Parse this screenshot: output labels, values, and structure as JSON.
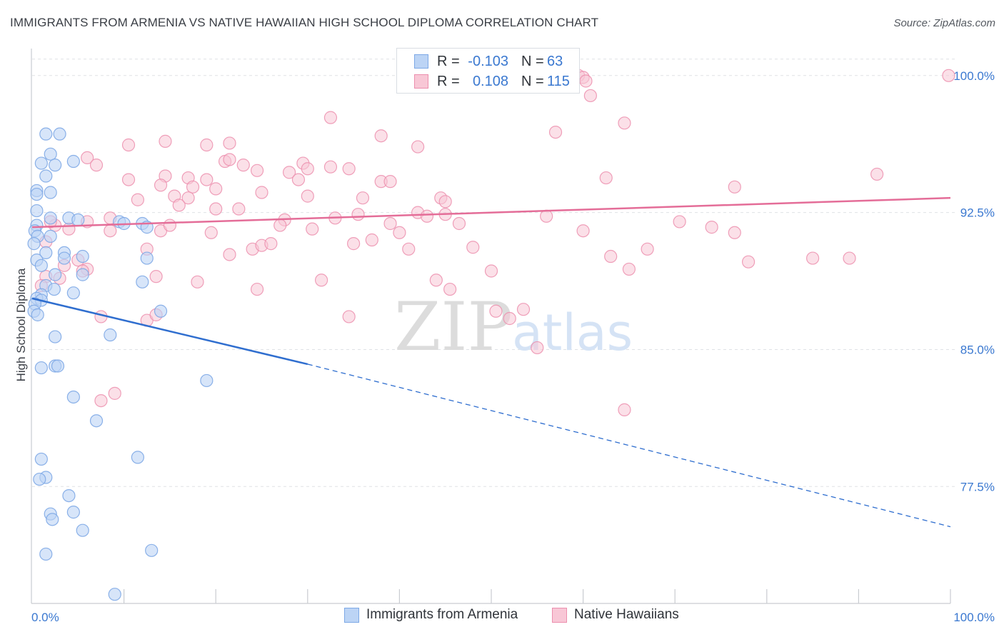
{
  "title": "IMMIGRANTS FROM ARMENIA VS NATIVE HAWAIIAN HIGH SCHOOL DIPLOMA CORRELATION CHART",
  "source": "Source: ZipAtlas.com",
  "watermark": {
    "zip": "ZIP",
    "atlas": "atlas"
  },
  "colors": {
    "blue": "#7ea9e6",
    "blue_fill": "#bcd4f5",
    "blue_line": "#2f6ecf",
    "pink": "#ec8fae",
    "pink_fill": "#f8c7d6",
    "pink_line": "#e46d98",
    "axis_label": "#3a78d0",
    "grid": "#dfe2e6"
  },
  "legend_top": {
    "rows": [
      {
        "series": "Immigrants from Armenia",
        "r_label": "R =",
        "r_value": "-0.103",
        "n_label": "N =",
        "n_value": "63"
      },
      {
        "series": "Native Hawaiians",
        "r_label": "R =",
        "r_value": "0.108",
        "n_label": "N =",
        "n_value": "115"
      }
    ]
  },
  "legend_bottom": [
    "Immigrants from Armenia",
    "Native Hawaiians"
  ],
  "chart_data": {
    "type": "scatter",
    "title": "IMMIGRANTS FROM ARMENIA VS NATIVE HAWAIIAN HIGH SCHOOL DIPLOMA CORRELATION CHART",
    "xlabel": "",
    "ylabel": "High School Diploma",
    "xlim": [
      0,
      100
    ],
    "ylim": [
      71.1,
      101.4
    ],
    "x_tick_labels": [
      {
        "value": 0,
        "label": "0.0%"
      },
      {
        "value": 100,
        "label": "100.0%"
      }
    ],
    "x_minor_ticks": [
      10,
      20,
      30,
      40,
      50,
      60,
      70,
      80,
      90
    ],
    "y_ticks": [
      {
        "value": 77.5,
        "label": "77.5%"
      },
      {
        "value": 85.0,
        "label": "85.0%"
      },
      {
        "value": 92.5,
        "label": "92.5%"
      },
      {
        "value": 100.0,
        "label": "100.0%"
      }
    ],
    "grid": "horizontal dashed",
    "series": [
      {
        "name": "Immigrants from Armenia",
        "r": -0.103,
        "n": 63,
        "trend": {
          "x0": 0,
          "y0": 87.8,
          "x1": 30,
          "y1": 84.2,
          "dashed_to": 100,
          "y_end": 75.3
        },
        "points": [
          [
            1.5,
            96.8
          ],
          [
            3.0,
            96.8
          ],
          [
            2.0,
            95.7
          ],
          [
            1.0,
            95.2
          ],
          [
            2.5,
            95.1
          ],
          [
            4.5,
            95.3
          ],
          [
            1.5,
            94.5
          ],
          [
            0.5,
            93.7
          ],
          [
            0.5,
            93.5
          ],
          [
            2.0,
            93.6
          ],
          [
            0.5,
            92.6
          ],
          [
            2.0,
            92.2
          ],
          [
            4.0,
            92.2
          ],
          [
            5.0,
            92.1
          ],
          [
            9.5,
            92.0
          ],
          [
            12.0,
            91.9
          ],
          [
            12.5,
            91.7
          ],
          [
            0.5,
            91.8
          ],
          [
            0.3,
            91.5
          ],
          [
            0.6,
            91.2
          ],
          [
            2.0,
            91.2
          ],
          [
            0.2,
            90.8
          ],
          [
            1.5,
            90.3
          ],
          [
            3.5,
            90.3
          ],
          [
            3.5,
            90.0
          ],
          [
            5.5,
            90.1
          ],
          [
            12.5,
            90.0
          ],
          [
            0.5,
            89.9
          ],
          [
            1.0,
            89.6
          ],
          [
            2.5,
            89.1
          ],
          [
            5.5,
            89.1
          ],
          [
            12.0,
            88.7
          ],
          [
            1.5,
            88.5
          ],
          [
            1.0,
            88.0
          ],
          [
            0.5,
            87.8
          ],
          [
            1.0,
            87.7
          ],
          [
            4.5,
            88.1
          ],
          [
            14.0,
            87.1
          ],
          [
            0.3,
            87.5
          ],
          [
            0.2,
            87.1
          ],
          [
            2.5,
            85.7
          ],
          [
            8.5,
            85.8
          ],
          [
            1.0,
            84.0
          ],
          [
            2.5,
            84.1
          ],
          [
            2.8,
            84.1
          ],
          [
            19.0,
            83.3
          ],
          [
            4.5,
            82.4
          ],
          [
            7.0,
            81.1
          ],
          [
            1.0,
            79.0
          ],
          [
            1.5,
            78.0
          ],
          [
            11.5,
            79.1
          ],
          [
            0.8,
            77.9
          ],
          [
            4.0,
            77.0
          ],
          [
            2.0,
            76.0
          ],
          [
            4.5,
            76.1
          ],
          [
            2.2,
            75.7
          ],
          [
            5.5,
            75.1
          ],
          [
            1.5,
            73.8
          ],
          [
            13.0,
            74.0
          ],
          [
            9.0,
            71.6
          ],
          [
            0.6,
            86.9
          ],
          [
            2.4,
            88.3
          ],
          [
            10.0,
            91.9
          ]
        ]
      },
      {
        "name": "Native Hawaiians",
        "r": 0.108,
        "n": 115,
        "trend": {
          "x0": 0,
          "y0": 91.7,
          "x1": 100,
          "y1": 93.3
        },
        "points": [
          [
            99.8,
            100.0
          ],
          [
            59.5,
            100.0
          ],
          [
            60.0,
            99.9
          ],
          [
            60.3,
            99.7
          ],
          [
            60.8,
            98.9
          ],
          [
            32.5,
            97.7
          ],
          [
            64.5,
            97.4
          ],
          [
            57.0,
            96.9
          ],
          [
            38.0,
            96.7
          ],
          [
            14.5,
            96.4
          ],
          [
            10.5,
            96.2
          ],
          [
            19.0,
            96.2
          ],
          [
            21.5,
            96.3
          ],
          [
            42.0,
            96.1
          ],
          [
            6.0,
            95.5
          ],
          [
            21.0,
            95.3
          ],
          [
            21.5,
            95.4
          ],
          [
            7.0,
            95.1
          ],
          [
            23.0,
            95.1
          ],
          [
            29.5,
            95.2
          ],
          [
            30.0,
            94.9
          ],
          [
            32.5,
            95.0
          ],
          [
            34.5,
            94.9
          ],
          [
            24.5,
            94.8
          ],
          [
            28.0,
            94.7
          ],
          [
            14.5,
            94.5
          ],
          [
            17.0,
            94.4
          ],
          [
            10.5,
            94.3
          ],
          [
            19.0,
            94.3
          ],
          [
            29.0,
            94.3
          ],
          [
            38.0,
            94.2
          ],
          [
            39.0,
            94.2
          ],
          [
            62.5,
            94.4
          ],
          [
            92.0,
            94.6
          ],
          [
            14.0,
            94.0
          ],
          [
            17.5,
            93.9
          ],
          [
            20.0,
            93.8
          ],
          [
            25.0,
            93.6
          ],
          [
            15.5,
            93.4
          ],
          [
            17.0,
            93.3
          ],
          [
            30.0,
            93.4
          ],
          [
            36.0,
            93.3
          ],
          [
            44.5,
            93.3
          ],
          [
            45.0,
            93.1
          ],
          [
            76.5,
            93.9
          ],
          [
            11.5,
            93.2
          ],
          [
            16.0,
            92.9
          ],
          [
            20.0,
            92.7
          ],
          [
            22.5,
            92.7
          ],
          [
            27.5,
            92.1
          ],
          [
            35.5,
            92.4
          ],
          [
            42.0,
            92.5
          ],
          [
            43.0,
            92.3
          ],
          [
            45.0,
            92.4
          ],
          [
            33.0,
            92.2
          ],
          [
            39.0,
            91.9
          ],
          [
            8.5,
            92.2
          ],
          [
            14.0,
            91.5
          ],
          [
            19.5,
            91.4
          ],
          [
            27.0,
            91.8
          ],
          [
            46.5,
            91.9
          ],
          [
            60.0,
            91.5
          ],
          [
            70.5,
            92.0
          ],
          [
            74.0,
            91.7
          ],
          [
            76.5,
            91.4
          ],
          [
            2.5,
            91.8
          ],
          [
            4.0,
            91.6
          ],
          [
            1.5,
            90.9
          ],
          [
            6.0,
            92.0
          ],
          [
            8.5,
            91.5
          ],
          [
            12.5,
            90.5
          ],
          [
            24.0,
            90.5
          ],
          [
            25.0,
            90.7
          ],
          [
            26.0,
            90.8
          ],
          [
            35.0,
            90.8
          ],
          [
            37.0,
            91.0
          ],
          [
            41.0,
            90.5
          ],
          [
            48.0,
            90.6
          ],
          [
            63.0,
            90.1
          ],
          [
            67.0,
            90.5
          ],
          [
            3.5,
            89.6
          ],
          [
            5.0,
            89.9
          ],
          [
            6.0,
            89.4
          ],
          [
            13.5,
            89.0
          ],
          [
            18.0,
            88.7
          ],
          [
            24.5,
            88.3
          ],
          [
            31.5,
            88.8
          ],
          [
            44.0,
            88.8
          ],
          [
            45.5,
            88.3
          ],
          [
            50.0,
            89.3
          ],
          [
            65.0,
            89.4
          ],
          [
            78.0,
            89.8
          ],
          [
            85.0,
            90.0
          ],
          [
            89.0,
            90.0
          ],
          [
            1.5,
            89.0
          ],
          [
            3.0,
            88.9
          ],
          [
            1.0,
            88.5
          ],
          [
            7.5,
            86.8
          ],
          [
            12.5,
            86.6
          ],
          [
            13.5,
            86.9
          ],
          [
            34.5,
            86.8
          ],
          [
            50.5,
            87.1
          ],
          [
            52.0,
            86.7
          ],
          [
            53.5,
            87.2
          ],
          [
            55.0,
            85.1
          ],
          [
            9.0,
            82.6
          ],
          [
            7.5,
            82.2
          ],
          [
            64.5,
            81.7
          ],
          [
            21.5,
            90.2
          ],
          [
            5.5,
            89.3
          ],
          [
            40.0,
            91.4
          ],
          [
            15.0,
            91.8
          ],
          [
            2.0,
            92.0
          ],
          [
            56.0,
            92.3
          ],
          [
            30.5,
            91.6
          ]
        ]
      }
    ]
  }
}
